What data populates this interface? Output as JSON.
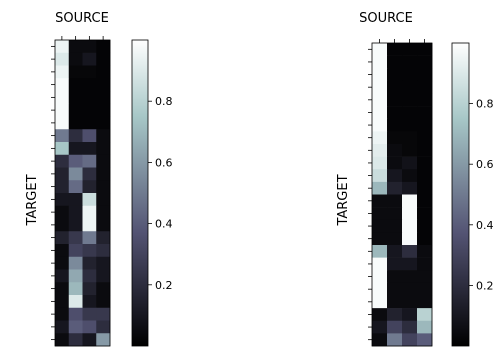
{
  "chart_data": [
    {
      "type": "heatmap",
      "xlabel": "SOURCE",
      "ylabel": "TARGET",
      "columns": 4,
      "rows": 24,
      "colormap": "bone",
      "colorbar_ticks": [
        "0.2",
        "0.4",
        "0.6",
        "0.8"
      ],
      "colorbar_tick_values": [
        0.2,
        0.4,
        0.6,
        0.8
      ],
      "colorbar_range": [
        0.0,
        1.0
      ],
      "values": [
        [
          0.95,
          0.05,
          0.05,
          0.02
        ],
        [
          0.9,
          0.05,
          0.1,
          0.02
        ],
        [
          0.95,
          0.03,
          0.03,
          0.02
        ],
        [
          0.98,
          0.02,
          0.02,
          0.02
        ],
        [
          0.98,
          0.02,
          0.02,
          0.02
        ],
        [
          0.98,
          0.02,
          0.02,
          0.02
        ],
        [
          0.98,
          0.02,
          0.02,
          0.02
        ],
        [
          0.5,
          0.2,
          0.35,
          0.05
        ],
        [
          0.75,
          0.1,
          0.1,
          0.05
        ],
        [
          0.2,
          0.4,
          0.45,
          0.05
        ],
        [
          0.15,
          0.55,
          0.2,
          0.05
        ],
        [
          0.15,
          0.45,
          0.15,
          0.05
        ],
        [
          0.1,
          0.1,
          0.85,
          0.05
        ],
        [
          0.05,
          0.1,
          0.95,
          0.05
        ],
        [
          0.05,
          0.1,
          0.95,
          0.05
        ],
        [
          0.15,
          0.25,
          0.5,
          0.15
        ],
        [
          0.05,
          0.3,
          0.25,
          0.2
        ],
        [
          0.05,
          0.55,
          0.15,
          0.1
        ],
        [
          0.1,
          0.65,
          0.2,
          0.1
        ],
        [
          0.05,
          0.7,
          0.15,
          0.05
        ],
        [
          0.05,
          0.9,
          0.1,
          0.05
        ],
        [
          0.05,
          0.35,
          0.25,
          0.25
        ],
        [
          0.1,
          0.4,
          0.35,
          0.2
        ],
        [
          0.05,
          0.2,
          0.1,
          0.6
        ]
      ]
    },
    {
      "type": "heatmap",
      "xlabel": "SOURCE",
      "ylabel": "TARGET",
      "columns": 4,
      "rows": 24,
      "colormap": "bone",
      "colorbar_ticks": [
        "0.2",
        "0.4",
        "0.6",
        "0.8"
      ],
      "colorbar_tick_values": [
        0.2,
        0.4,
        0.6,
        0.8
      ],
      "colorbar_range": [
        0.0,
        1.0
      ],
      "values": [
        [
          0.98,
          0.02,
          0.02,
          0.02
        ],
        [
          0.98,
          0.02,
          0.02,
          0.02
        ],
        [
          0.98,
          0.02,
          0.02,
          0.02
        ],
        [
          0.98,
          0.02,
          0.02,
          0.02
        ],
        [
          0.98,
          0.02,
          0.02,
          0.02
        ],
        [
          0.98,
          0.02,
          0.02,
          0.02
        ],
        [
          0.98,
          0.02,
          0.02,
          0.02
        ],
        [
          0.95,
          0.03,
          0.03,
          0.02
        ],
        [
          0.92,
          0.05,
          0.03,
          0.02
        ],
        [
          0.9,
          0.05,
          0.08,
          0.02
        ],
        [
          0.85,
          0.1,
          0.05,
          0.02
        ],
        [
          0.7,
          0.15,
          0.1,
          0.02
        ],
        [
          0.05,
          0.05,
          0.98,
          0.02
        ],
        [
          0.05,
          0.05,
          0.98,
          0.02
        ],
        [
          0.05,
          0.05,
          0.98,
          0.02
        ],
        [
          0.05,
          0.05,
          0.98,
          0.02
        ],
        [
          0.7,
          0.1,
          0.2,
          0.05
        ],
        [
          0.98,
          0.1,
          0.1,
          0.05
        ],
        [
          0.98,
          0.05,
          0.05,
          0.05
        ],
        [
          0.98,
          0.05,
          0.05,
          0.05
        ],
        [
          0.98,
          0.05,
          0.05,
          0.05
        ],
        [
          0.05,
          0.15,
          0.1,
          0.8
        ],
        [
          0.1,
          0.3,
          0.2,
          0.7
        ],
        [
          0.05,
          0.5,
          0.3,
          0.4
        ]
      ]
    }
  ]
}
